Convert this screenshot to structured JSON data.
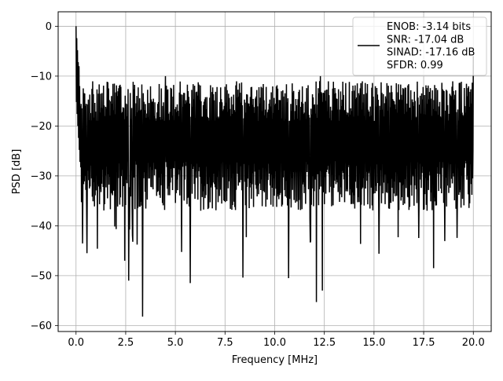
{
  "chart_data": {
    "type": "line",
    "title": "",
    "xlabel": "Frequency [MHz]",
    "ylabel": "PSD [dB]",
    "xlim": [
      -0.9,
      20.9
    ],
    "ylim": [
      -61.2,
      2.9
    ],
    "x_ticks": [
      0.0,
      2.5,
      5.0,
      7.5,
      10.0,
      12.5,
      15.0,
      17.5,
      20.0
    ],
    "x_tick_labels": [
      "0.0",
      "2.5",
      "5.0",
      "7.5",
      "10.0",
      "12.5",
      "15.0",
      "17.5",
      "20.0"
    ],
    "y_ticks": [
      0,
      -10,
      -20,
      -30,
      -40,
      -50,
      -60
    ],
    "y_tick_labels": [
      "0",
      "−10",
      "−20",
      "−30",
      "−40",
      "−50",
      "−60"
    ],
    "grid": true,
    "legend": {
      "placement": "top-right",
      "entries": [
        "ENOB: -3.14 bits",
        "SNR: -17.04 dB",
        "SINAD: -17.16 dB",
        "SFDR: 0.99"
      ]
    },
    "series": [
      {
        "color": "#000000",
        "x_range": [
          0.0,
          20.0
        ],
        "peak": {
          "x": 0.0,
          "y": 0.0
        },
        "end_spike": {
          "x": 20.0,
          "y": -6.0
        },
        "band_upper_typical": -15.0,
        "band_lower_typical": -32.0,
        "notable_minima": [
          {
            "x": 0.55,
            "y": -45.5
          },
          {
            "x": 2.45,
            "y": -47.0
          },
          {
            "x": 2.65,
            "y": -51.0
          },
          {
            "x": 3.35,
            "y": -58.2
          },
          {
            "x": 5.75,
            "y": -51.5
          },
          {
            "x": 8.4,
            "y": -50.4
          },
          {
            "x": 10.7,
            "y": -50.5
          },
          {
            "x": 12.1,
            "y": -55.3
          },
          {
            "x": 12.4,
            "y": -53.0
          },
          {
            "x": 18.0,
            "y": -48.5
          }
        ],
        "notable_maxima": [
          {
            "x": 4.5,
            "y": -10.0
          },
          {
            "x": 12.3,
            "y": -10.0
          },
          {
            "x": 0.15,
            "y": -8.0
          }
        ]
      }
    ]
  }
}
